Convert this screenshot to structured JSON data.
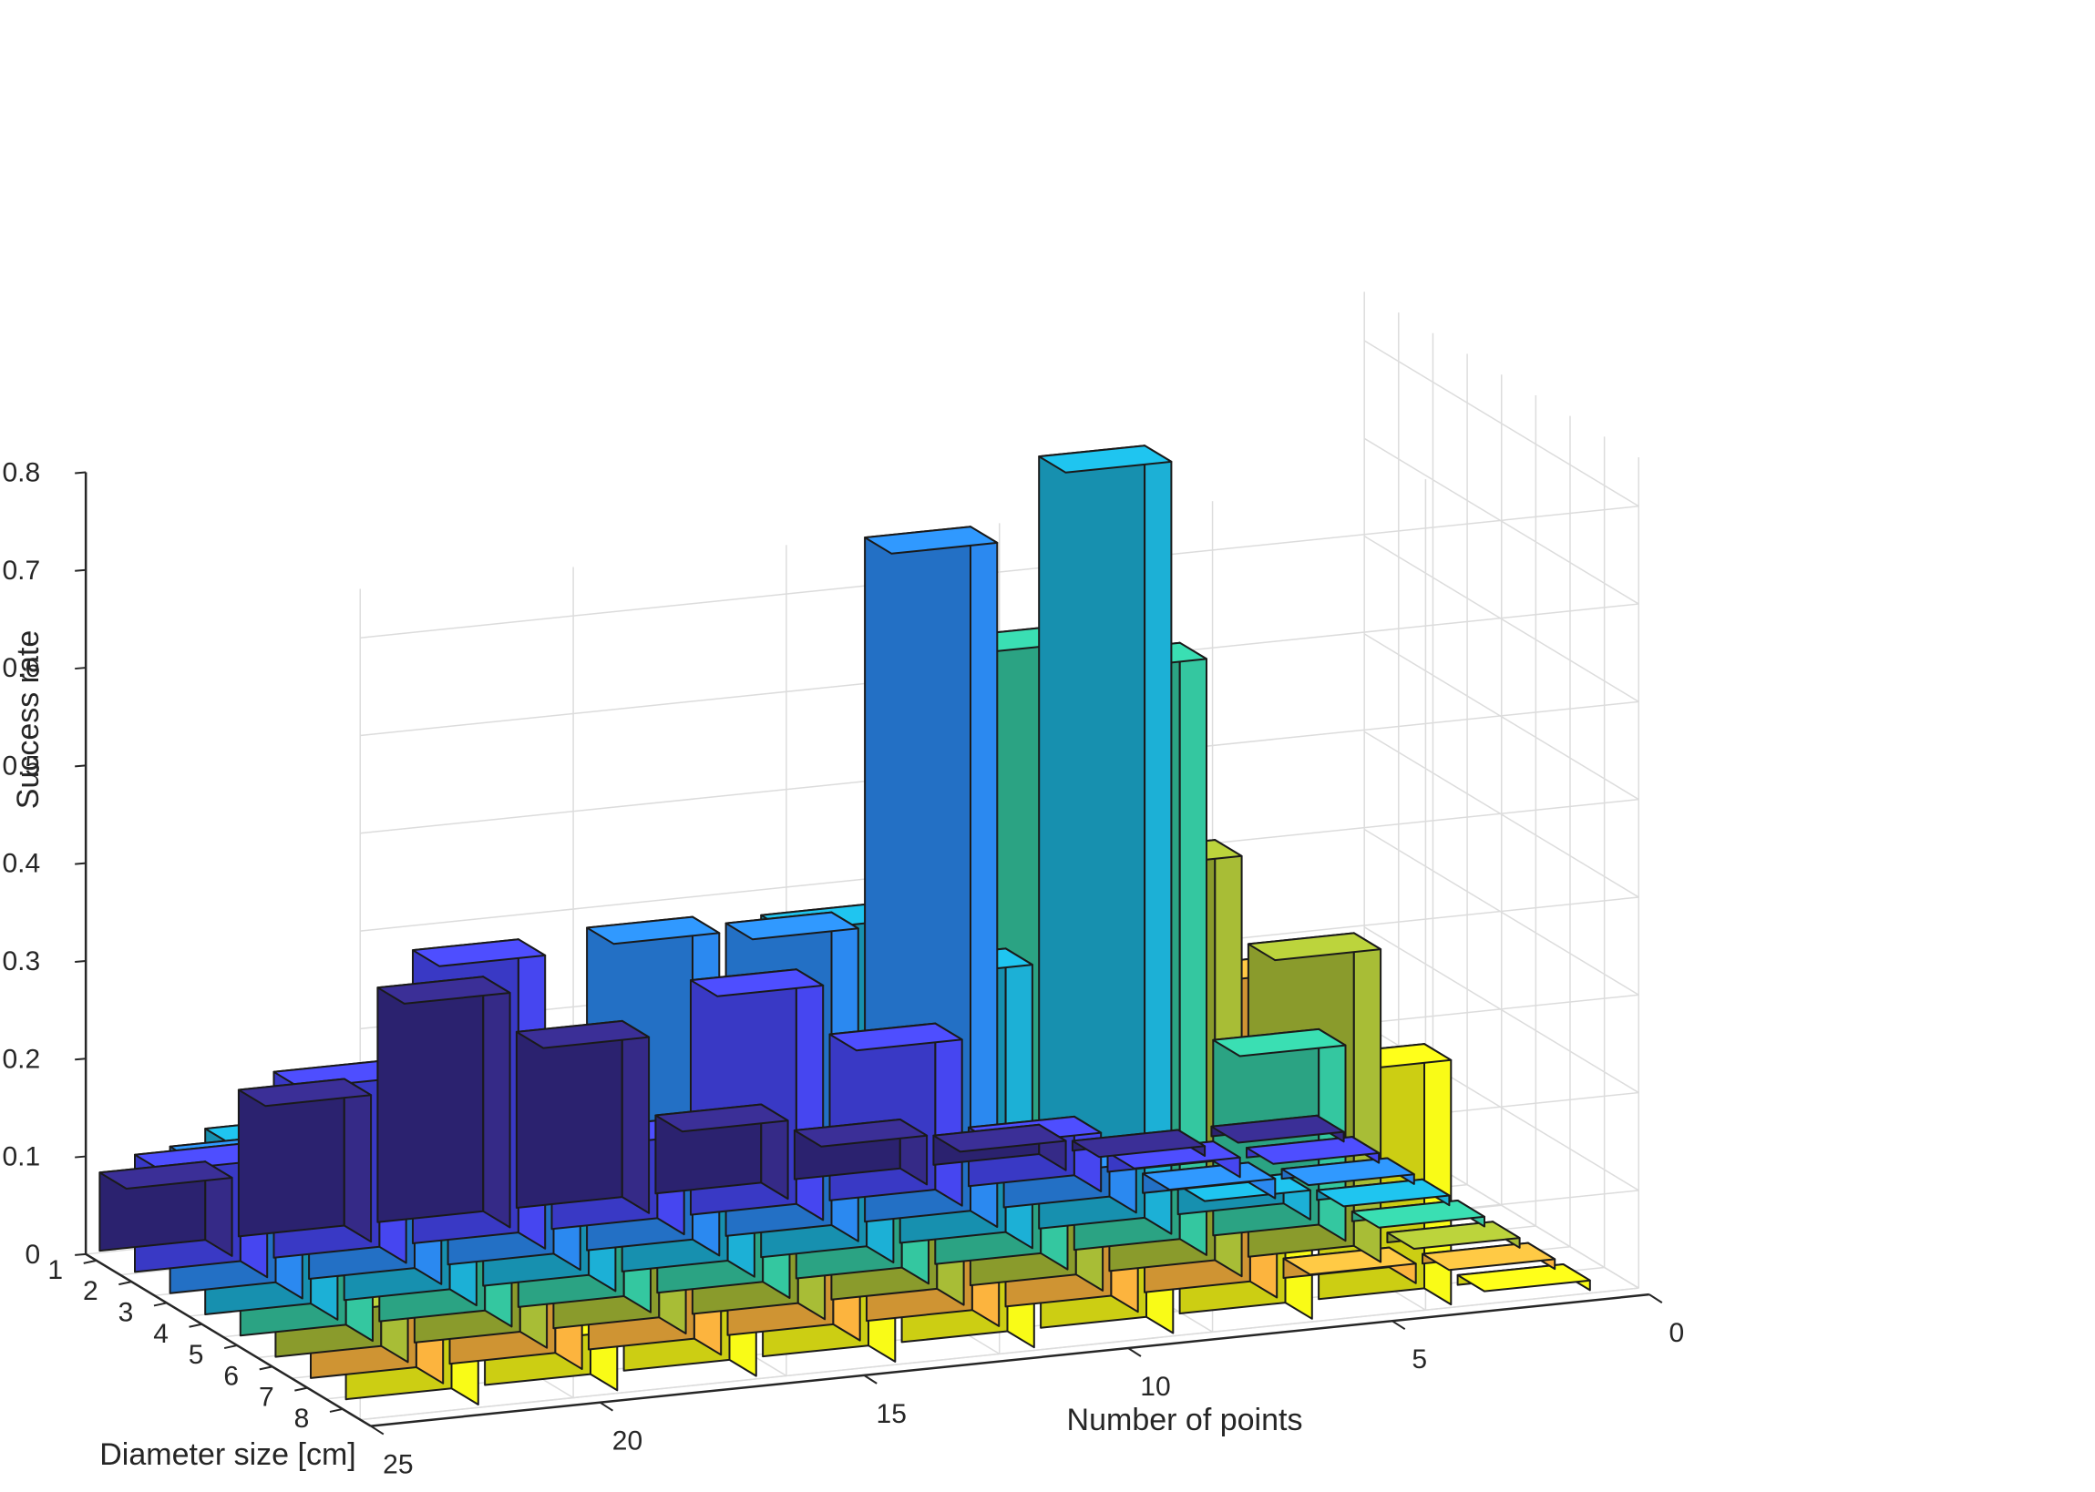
{
  "chart_data": {
    "type": "bar3d",
    "zlabel": "Success rate",
    "xlabel": "Number of points",
    "ylabel": "Diameter size [cm]",
    "zlim": [
      0,
      0.8
    ],
    "z_ticks": [
      "0",
      "0.1",
      "0.2",
      "0.3",
      "0.4",
      "0.5",
      "0.6",
      "0.7",
      "0.8"
    ],
    "x_ticks": [
      "25",
      "20",
      "15",
      "10",
      "5",
      "0"
    ],
    "y_ticks": [
      "1",
      "2",
      "3",
      "4",
      "5",
      "6",
      "7",
      "8"
    ],
    "grid": true,
    "diameters": [
      1,
      2,
      3,
      4,
      5,
      6,
      7,
      8
    ],
    "series_colors": [
      "#352a87",
      "#4646f0",
      "#2b89f0",
      "#1cb0d6",
      "#34c7a0",
      "#a8bd36",
      "#fcb43e",
      "#f9fb17"
    ],
    "series": [
      {
        "values": [
          0.08,
          0.15,
          0.24,
          0.18,
          0.08,
          0.05,
          0.03,
          0.01,
          0.01
        ]
      },
      {
        "values": [
          0.12,
          0.19,
          0.3,
          0.1,
          0.24,
          0.17,
          0.06,
          0.02,
          0.01
        ]
      },
      {
        "values": [
          0.15,
          0.2,
          0.17,
          0.33,
          0.32,
          0.7,
          0.05,
          0.02,
          0.01
        ]
      },
      {
        "values": [
          0.19,
          0.1,
          0.1,
          0.29,
          0.35,
          0.29,
          0.79,
          0.03,
          0.01
        ]
      },
      {
        "values": [
          0.07,
          0.11,
          0.16,
          0.12,
          0.18,
          0.64,
          0.61,
          0.2,
          0.01
        ]
      },
      {
        "values": [
          0.06,
          0.1,
          0.17,
          0.24,
          0.18,
          0.14,
          0.43,
          0.32,
          0.01
        ]
      },
      {
        "values": [
          0.12,
          0.17,
          0.08,
          0.12,
          0.19,
          0.12,
          0.33,
          0.02,
          0.01
        ]
      },
      {
        "values": [
          0.08,
          0.06,
          0.07,
          0.13,
          0.18,
          0.11,
          0.13,
          0.25,
          0.01
        ]
      }
    ]
  }
}
